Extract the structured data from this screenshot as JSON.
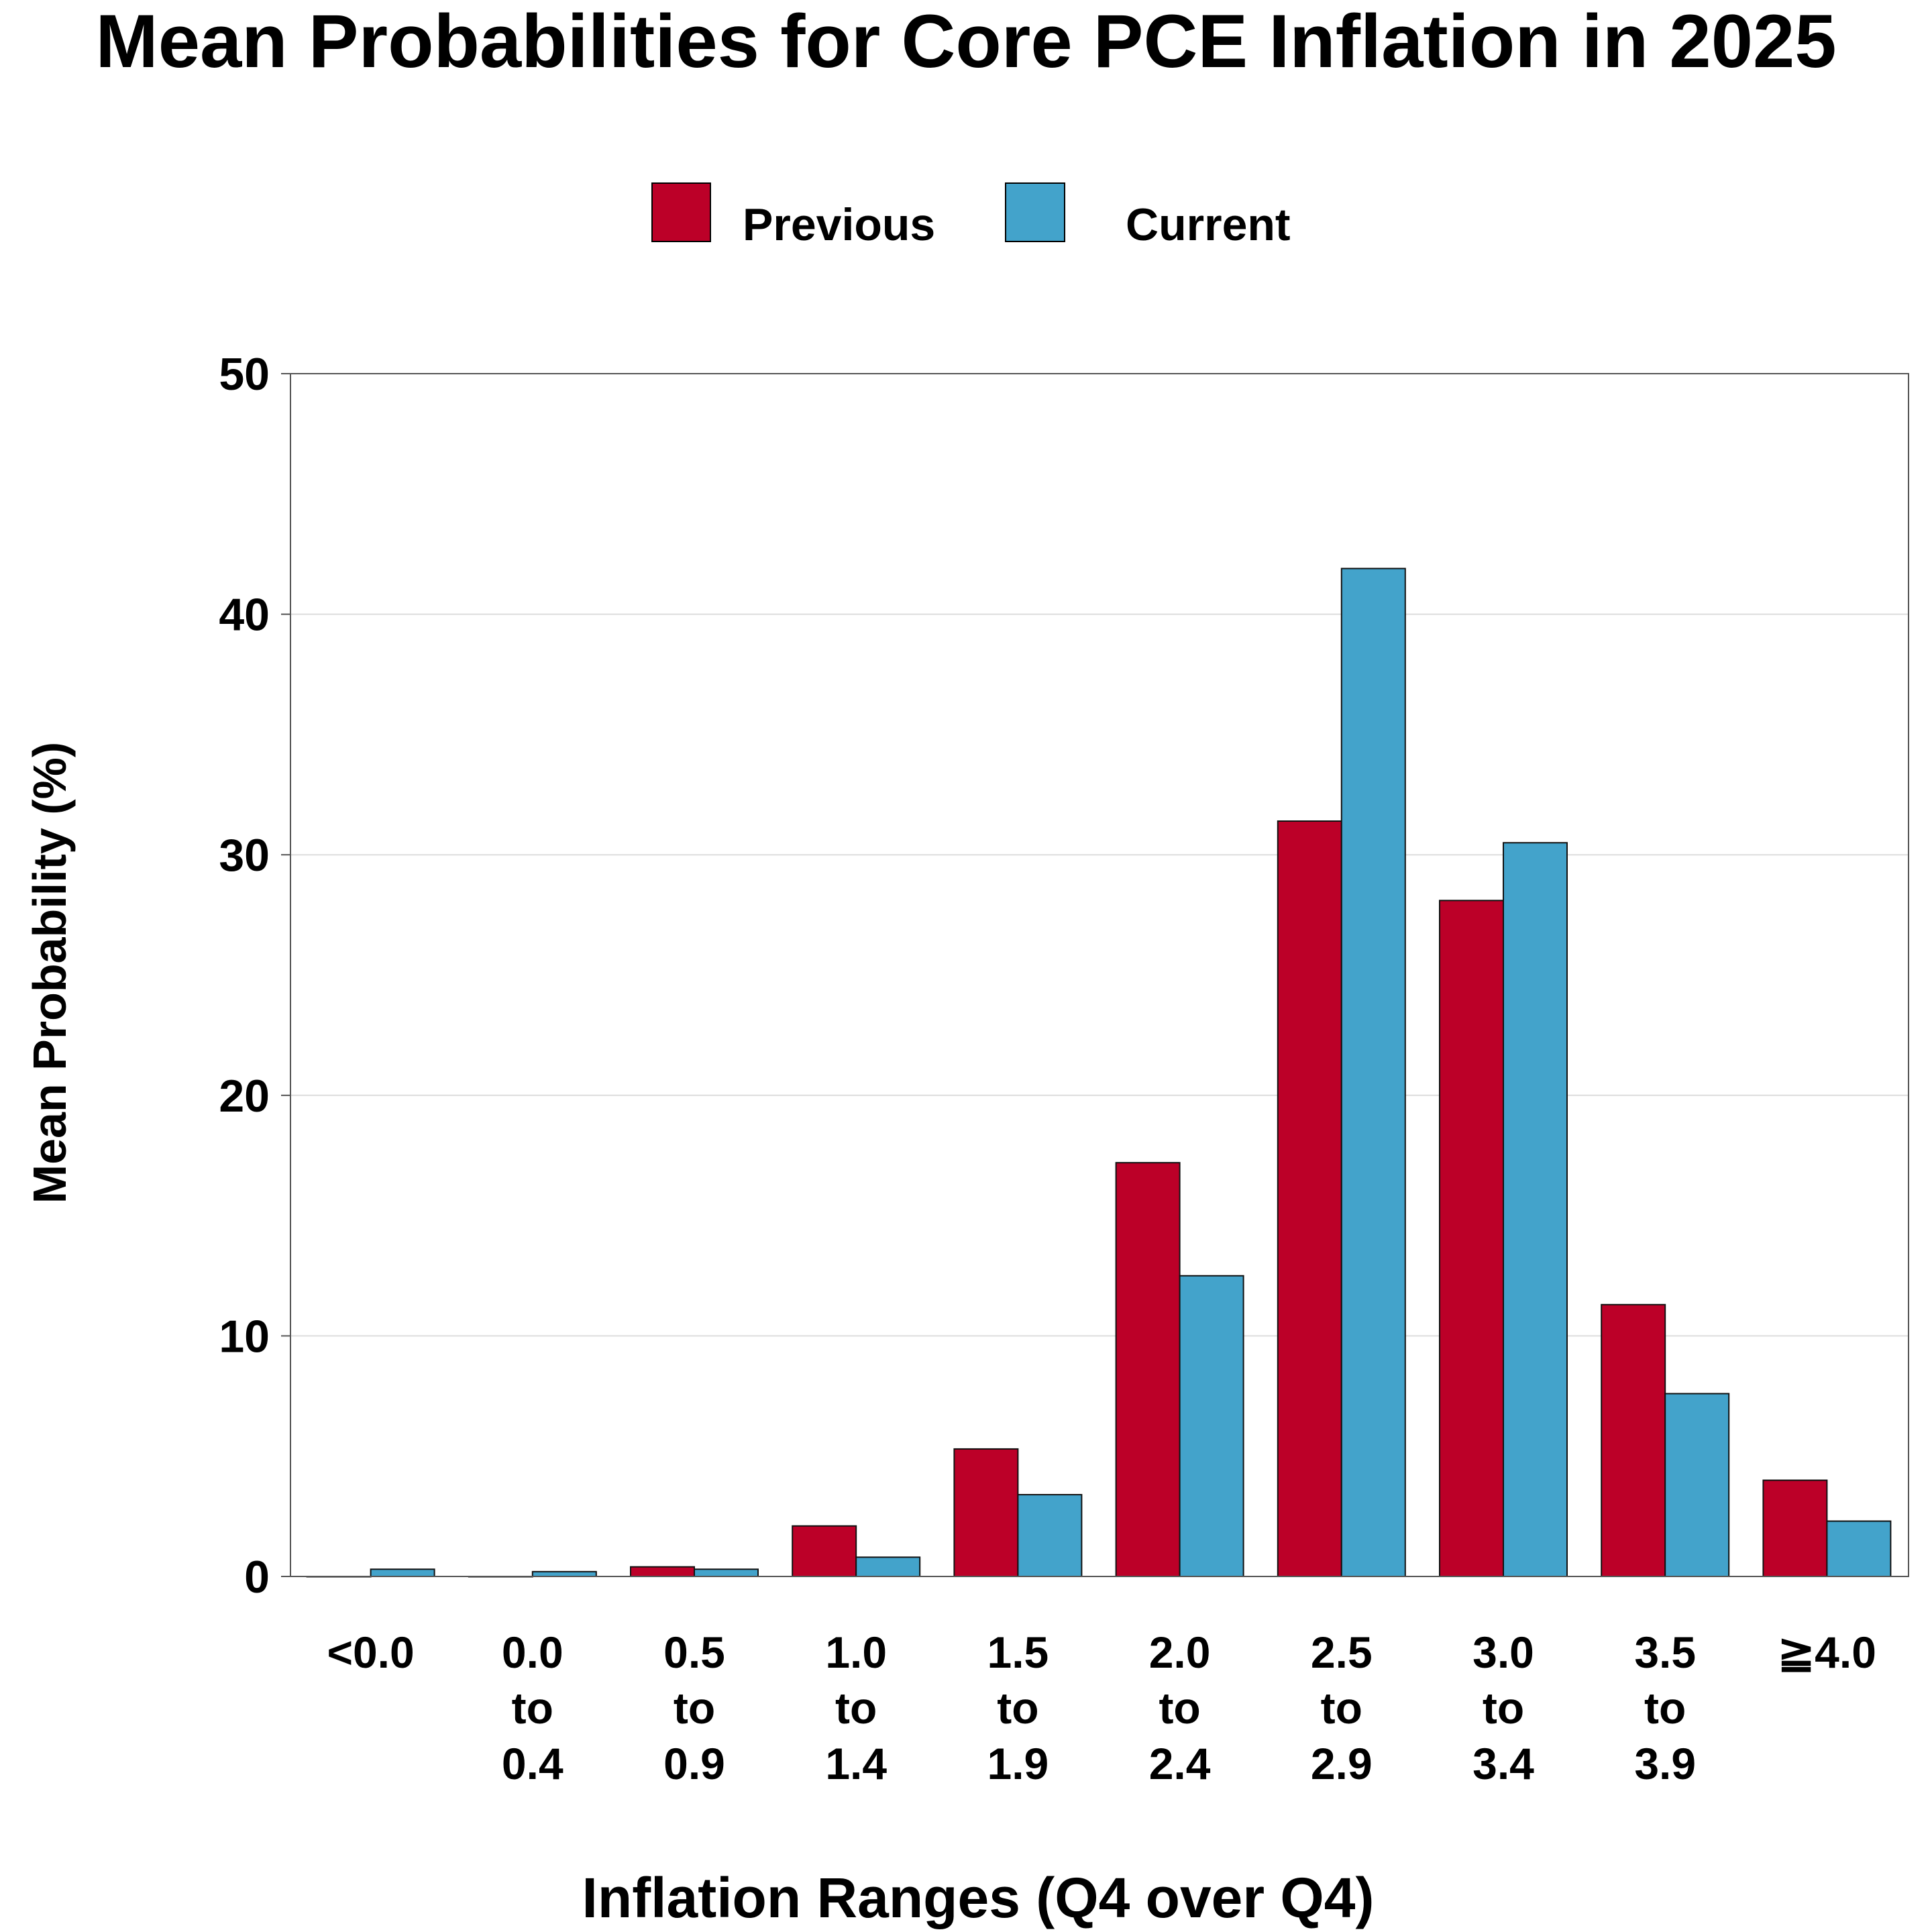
{
  "chart_data": {
    "type": "bar",
    "title": "Mean Probabilities for Core PCE Inflation in 2025",
    "xlabel": "Inflation Ranges (Q4 over Q4)",
    "ylabel": "Mean Probability (%)",
    "ylim": [
      0,
      50
    ],
    "yticks": [
      "0",
      "10",
      "20",
      "30",
      "40",
      "50"
    ],
    "grid": true,
    "legend_position": "top-center",
    "categories": [
      [
        "<0.0"
      ],
      [
        "0.0",
        "to",
        "0.4"
      ],
      [
        "0.5",
        "to",
        "0.9"
      ],
      [
        "1.0",
        "to",
        "1.4"
      ],
      [
        "1.5",
        "to",
        "1.9"
      ],
      [
        "2.0",
        "to",
        "2.4"
      ],
      [
        "2.5",
        "to",
        "2.9"
      ],
      [
        "3.0",
        "to",
        "3.4"
      ],
      [
        "3.5",
        "to",
        "3.9"
      ],
      [
        "≧4.0"
      ]
    ],
    "series": [
      {
        "name": "Previous",
        "color": "#BC0028",
        "values": [
          0.0,
          0.0,
          0.4,
          2.1,
          5.3,
          17.2,
          31.4,
          28.1,
          11.3,
          4.0
        ]
      },
      {
        "name": "Current",
        "color": "#43A3CB",
        "values": [
          0.3,
          0.2,
          0.3,
          0.8,
          3.4,
          12.5,
          41.9,
          30.5,
          7.6,
          2.3
        ]
      }
    ]
  }
}
